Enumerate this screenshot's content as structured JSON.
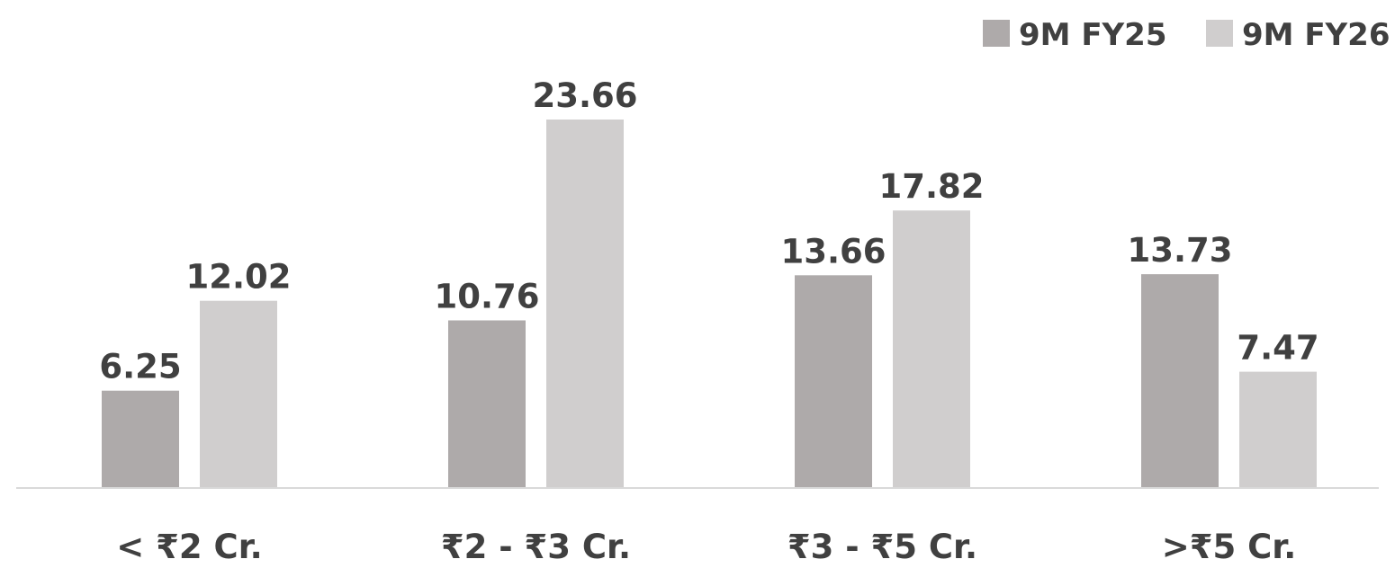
{
  "chart_data": {
    "type": "bar",
    "title": "",
    "xlabel": "",
    "ylabel": "",
    "categories": [
      "< ₹2 Cr.",
      "₹2 - ₹3 Cr.",
      "₹3 - ₹5 Cr.",
      ">₹5 Cr."
    ],
    "series": [
      {
        "name": "9M FY25",
        "values": [
          6.25,
          10.76,
          13.66,
          13.73
        ],
        "color": "#aeaaaa"
      },
      {
        "name": "9M FY26",
        "values": [
          12.02,
          23.66,
          17.82,
          7.47
        ],
        "color": "#d0cece"
      }
    ],
    "value_labels": [
      [
        "6.25",
        "10.76",
        "13.66",
        "13.73"
      ],
      [
        "12.02",
        "23.66",
        "17.82",
        "7.47"
      ]
    ],
    "ylim": [
      0,
      23.66
    ],
    "grid": false,
    "legend_position": "top-right",
    "axis_color": "#d9d9d9",
    "text_color": "#404040"
  }
}
